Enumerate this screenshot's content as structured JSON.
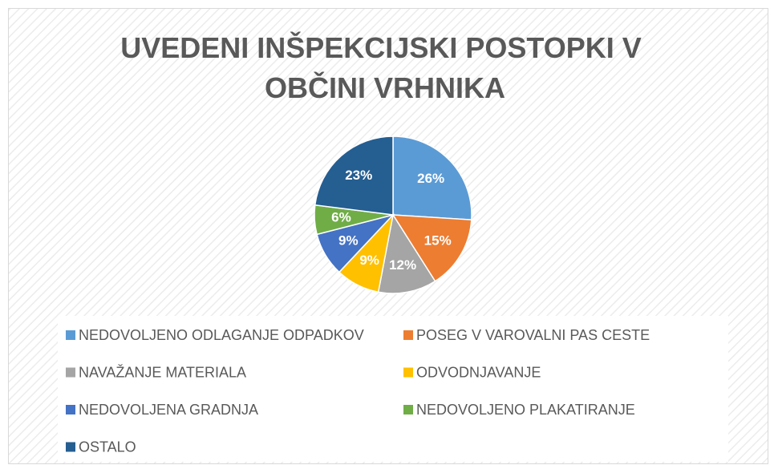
{
  "chart_data": {
    "type": "pie",
    "title": "UVEDENI INŠPEKCIJSKI POSTOPKI V OBČINI VRHNIKA",
    "categories": [
      "NEDOVOLJENO ODLAGANJE ODPADKOV",
      "POSEG V VAROVALNI PAS CESTE",
      "NAVAŽANJE MATERIALA",
      "ODVODNJAVANJE",
      "NEDOVOLJENA GRADNJA",
      "NEDOVOLJENO PLAKATIRANJE",
      "OSTALO"
    ],
    "values": [
      26,
      15,
      12,
      9,
      9,
      6,
      23
    ],
    "value_labels": [
      "26%",
      "15%",
      "12%",
      "9%",
      "9%",
      "6%",
      "23%"
    ],
    "colors": [
      "#5b9bd5",
      "#ed7d31",
      "#a5a5a5",
      "#ffc000",
      "#4472c4",
      "#70ad47",
      "#255e91"
    ],
    "legend": "bottom"
  }
}
